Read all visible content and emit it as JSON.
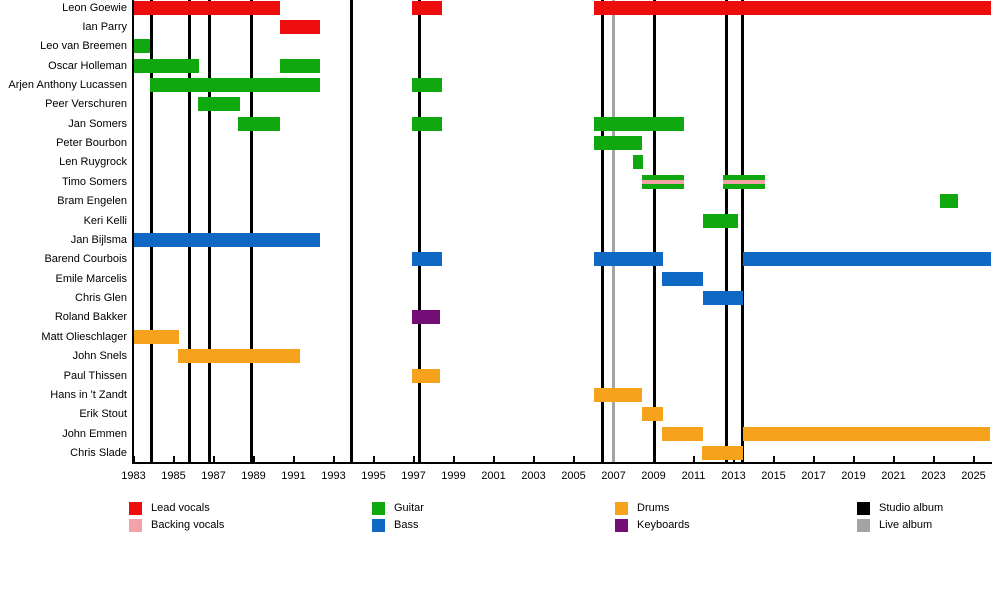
{
  "chart_data": {
    "type": "timeline",
    "x_axis": {
      "start": 1983,
      "end": 2025.9,
      "tick_years": [
        1983,
        1985,
        1987,
        1989,
        1991,
        1993,
        1995,
        1997,
        1999,
        2001,
        2003,
        2005,
        2007,
        2009,
        2011,
        2013,
        2015,
        2017,
        2019,
        2021,
        2023,
        2025
      ]
    },
    "members": [
      {
        "name": "Leon Goewie",
        "role": "lead_vocals",
        "segments": [
          [
            1983,
            1990.3
          ],
          [
            1996.9,
            1998.4
          ],
          [
            2006,
            2025.85
          ]
        ]
      },
      {
        "name": "Ian Parry",
        "role": "lead_vocals",
        "segments": [
          [
            1990.3,
            1992.3
          ]
        ]
      },
      {
        "name": "Leo van Breemen",
        "role": "guitar",
        "segments": [
          [
            1983,
            1983.8
          ]
        ]
      },
      {
        "name": "Oscar Holleman",
        "role": "guitar",
        "segments": [
          [
            1983,
            1986.25
          ],
          [
            1990.3,
            1992.3
          ]
        ]
      },
      {
        "name": "Arjen Anthony Lucassen",
        "role": "guitar",
        "segments": [
          [
            1983.8,
            1992.3
          ],
          [
            1996.9,
            1998.4
          ]
        ]
      },
      {
        "name": "Peer Verschuren",
        "role": "guitar",
        "segments": [
          [
            1986.2,
            1988.3
          ]
        ]
      },
      {
        "name": "Jan Somers",
        "role": "guitar",
        "segments": [
          [
            1988.2,
            1990.3
          ],
          [
            1996.9,
            1998.4
          ],
          [
            2006,
            2010.5
          ]
        ]
      },
      {
        "name": "Peter Bourbon",
        "role": "guitar",
        "segments": [
          [
            2006,
            2008.4
          ]
        ]
      },
      {
        "name": "Len Ruygrock",
        "role": "guitar",
        "segments": [
          [
            2007.95,
            2008.45
          ]
        ]
      },
      {
        "name": "Timo Somers",
        "role": "guitar",
        "stripe_role": "backing_vocals",
        "segments": [
          [
            2008.4,
            2010.5
          ],
          [
            2012.45,
            2014.55
          ]
        ]
      },
      {
        "name": "Bram Engelen",
        "role": "guitar",
        "segments": [
          [
            2023.3,
            2024.2
          ]
        ]
      },
      {
        "name": "Keri Kelli",
        "role": "guitar",
        "segments": [
          [
            2011.45,
            2013.2
          ]
        ]
      },
      {
        "name": "Jan Bijlsma",
        "role": "bass",
        "segments": [
          [
            1983,
            1992.3
          ]
        ]
      },
      {
        "name": "Barend Courbois",
        "role": "bass",
        "segments": [
          [
            1996.9,
            1998.4
          ],
          [
            2006,
            2009.45
          ],
          [
            2013.45,
            2025.85
          ]
        ]
      },
      {
        "name": "Emile Marcelis",
        "role": "bass",
        "segments": [
          [
            2009.4,
            2011.45
          ]
        ]
      },
      {
        "name": "Chris Glen",
        "role": "bass",
        "segments": [
          [
            2011.45,
            2013.45
          ]
        ]
      },
      {
        "name": "Roland Bakker",
        "role": "keyboards",
        "segments": [
          [
            1996.9,
            1998.3
          ]
        ]
      },
      {
        "name": "Matt Olieschlager",
        "role": "drums",
        "segments": [
          [
            1983,
            1985.25
          ]
        ]
      },
      {
        "name": "John Snels",
        "role": "drums",
        "segments": [
          [
            1985.2,
            1991.3
          ]
        ]
      },
      {
        "name": "Paul Thissen",
        "role": "drums",
        "segments": [
          [
            1996.9,
            1998.3
          ]
        ]
      },
      {
        "name": "Hans in 't Zandt",
        "role": "drums",
        "segments": [
          [
            2006,
            2008.4
          ]
        ]
      },
      {
        "name": "Erik Stout",
        "role": "drums",
        "segments": [
          [
            2008.4,
            2009.45
          ]
        ]
      },
      {
        "name": "John Emmen",
        "role": "drums",
        "segments": [
          [
            2009.4,
            2011.45
          ],
          [
            2013.45,
            2025.8
          ]
        ]
      },
      {
        "name": "Chris Slade",
        "role": "drums",
        "segments": [
          [
            2011.4,
            2013.45
          ]
        ]
      }
    ],
    "albums": {
      "studio_years": [
        1983.9,
        1985.8,
        1986.8,
        1988.9,
        1993.9,
        1997.3,
        2006.45,
        2009.05,
        2012.65,
        2013.45
      ],
      "live_years": [
        2007
      ]
    },
    "legend": {
      "items": [
        {
          "label": "Lead vocals",
          "color_key": "lead_vocals"
        },
        {
          "label": "Backing vocals",
          "color_key": "backing_vocals"
        },
        {
          "label": "Guitar",
          "color_key": "guitar"
        },
        {
          "label": "Bass",
          "color_key": "bass"
        },
        {
          "label": "Drums",
          "color_key": "drums"
        },
        {
          "label": "Keyboards",
          "color_key": "keyboards"
        },
        {
          "label": "Studio album",
          "color_key": "studio_album"
        },
        {
          "label": "Live album",
          "color_key": "live_album"
        }
      ]
    }
  },
  "colors": {
    "lead_vocals": "#EE0D0D",
    "backing_vocals": "#F4A2A8",
    "guitar": "#0FA80F",
    "bass": "#0E68C4",
    "drums": "#F6A21D",
    "keyboards": "#750D76",
    "studio_album": "#000000",
    "live_album": "#A3A3A3"
  }
}
